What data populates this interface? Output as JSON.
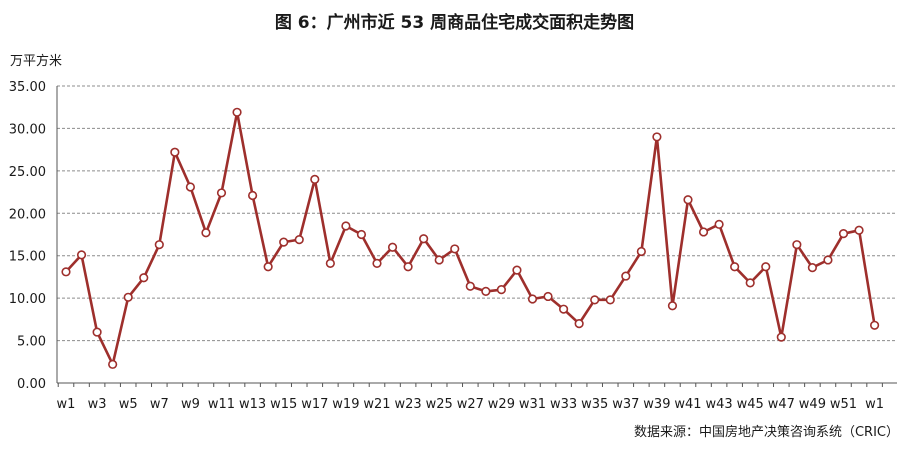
{
  "chart_data": {
    "type": "line",
    "title": "图 6：广州市近 53 周商品住宅成交面积走势图",
    "ylabel": "万平方米",
    "xlabel": "",
    "source": "数据来源：中国房地产决策咨询系统（CRIC）",
    "ylim": [
      0,
      35
    ],
    "yticks": [
      "0.00",
      "5.00",
      "10.00",
      "15.00",
      "20.00",
      "25.00",
      "30.00",
      "35.00"
    ],
    "grid": true,
    "categories": [
      "w1",
      "w2",
      "w3",
      "w4",
      "w5",
      "w6",
      "w7",
      "w8",
      "w9",
      "w10",
      "w11",
      "w12",
      "w13",
      "w14",
      "w15",
      "w16",
      "w17",
      "w18",
      "w19",
      "w20",
      "w21",
      "w22",
      "w23",
      "w24",
      "w25",
      "w26",
      "w27",
      "w28",
      "w29",
      "w30",
      "w31",
      "w32",
      "w33",
      "w34",
      "w35",
      "w36",
      "w37",
      "w38",
      "w39",
      "w40",
      "w41",
      "w42",
      "w43",
      "w44",
      "w45",
      "w46",
      "w47",
      "w48",
      "w49",
      "w50",
      "w51",
      "w52",
      "w1"
    ],
    "xtick_labels": [
      "w1",
      "w3",
      "w5",
      "w7",
      "w9",
      "w11",
      "w13",
      "w15",
      "w17",
      "w19",
      "w21",
      "w23",
      "w25",
      "w27",
      "w29",
      "w31",
      "w33",
      "w35",
      "w37",
      "w39",
      "w41",
      "w43",
      "w45",
      "w47",
      "w49",
      "w51",
      "w1"
    ],
    "series": [
      {
        "color": "#9e2f2c",
        "values": [
          13.1,
          15.1,
          6.0,
          2.2,
          10.1,
          12.4,
          16.3,
          27.2,
          23.1,
          17.7,
          22.4,
          31.9,
          22.1,
          13.7,
          16.6,
          16.9,
          24.0,
          14.1,
          18.5,
          17.5,
          14.1,
          16.0,
          13.7,
          17.0,
          14.5,
          15.8,
          11.4,
          10.8,
          11.0,
          13.3,
          9.9,
          10.2,
          8.7,
          7.0,
          9.8,
          9.8,
          12.6,
          15.5,
          29.0,
          9.1,
          21.6,
          17.8,
          18.7,
          13.7,
          11.8,
          13.7,
          5.4,
          16.3,
          13.6,
          14.5,
          17.6,
          18.0,
          6.8
        ]
      }
    ]
  }
}
